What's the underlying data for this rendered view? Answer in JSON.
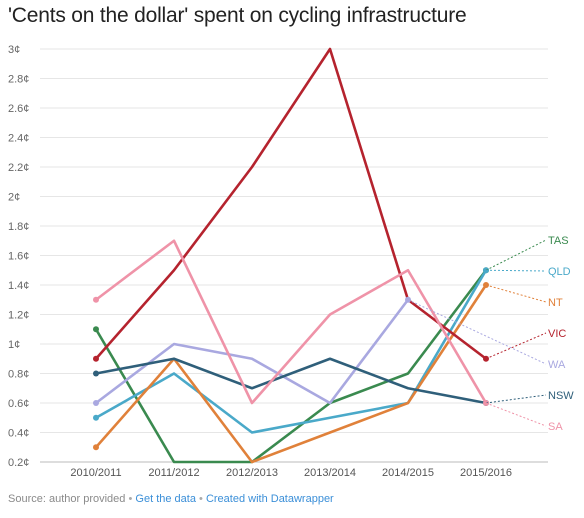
{
  "title": "'Cents on the dollar' spent on cycling infrastructure",
  "footer": {
    "source_text": "Source: author provided",
    "separator": "•",
    "get_data_link": "Get the data",
    "created_with_link": "Created with Datawrapper"
  },
  "chart_data": {
    "type": "line",
    "title": "'Cents on the dollar' spent on cycling infrastructure",
    "xlabel": "",
    "ylabel": "",
    "ylim": [
      0.2,
      3.0
    ],
    "grid": true,
    "legend": "direct labels at right",
    "x": [
      "2010/2011",
      "2011/2012",
      "2012/2013",
      "2013/2014",
      "2014/2015",
      "2015/2016"
    ],
    "y_ticks": [
      "0.2¢",
      "0.4¢",
      "0.6¢",
      "0.8¢",
      "1¢",
      "1.2¢",
      "1.4¢",
      "1.6¢",
      "1.8¢",
      "2¢",
      "2.2¢",
      "2.4¢",
      "2.6¢",
      "2.8¢",
      "3¢"
    ],
    "series": [
      {
        "name": "TAS",
        "color": "#3a8a4f",
        "values": [
          1.1,
          0.2,
          0.2,
          0.6,
          0.8,
          1.5
        ]
      },
      {
        "name": "QLD",
        "color": "#4aa9c9",
        "values": [
          0.5,
          0.8,
          0.4,
          0.5,
          0.6,
          1.5
        ]
      },
      {
        "name": "NT",
        "color": "#e0813a",
        "values": [
          0.3,
          0.9,
          0.2,
          0.4,
          0.6,
          1.4
        ]
      },
      {
        "name": "VIC",
        "color": "#b5232e",
        "values": [
          0.9,
          1.5,
          2.2,
          3.0,
          1.3,
          0.9
        ]
      },
      {
        "name": "WA",
        "color": "#a9a8e0",
        "values": [
          0.6,
          1.0,
          0.9,
          0.6,
          1.3,
          null
        ]
      },
      {
        "name": "NSW",
        "color": "#2f5f7a",
        "values": [
          0.8,
          0.9,
          0.7,
          0.9,
          0.7,
          0.6
        ]
      },
      {
        "name": "SA",
        "color": "#ef93a8",
        "values": [
          1.3,
          1.7,
          0.6,
          1.2,
          1.5,
          0.6
        ]
      }
    ]
  }
}
